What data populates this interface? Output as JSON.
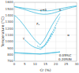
{
  "chart_data": {
    "type": "line",
    "xlabel": "Cr  (%)",
    "ylabel": "Temperature (°C)",
    "xlim": [
      0,
      30
    ],
    "ylim": [
      700,
      1600
    ],
    "xticks": [
      0,
      5,
      10,
      15,
      20,
      25,
      30
    ],
    "yticks": [
      700,
      800,
      900,
      1000,
      1100,
      1200,
      1300,
      1400,
      1500,
      1600
    ],
    "grid": true,
    "color": "#44bbdd",
    "series": [
      {
        "x": [
          0,
          2,
          4,
          6,
          8,
          10,
          12,
          14,
          16,
          18,
          20,
          22,
          24,
          26,
          28,
          30
        ],
        "values": [
          1535,
          1525,
          1515,
          1505,
          1495,
          1485,
          1475,
          1470,
          1470,
          1475,
          1488,
          1500,
          1515,
          1527,
          1538,
          1545
        ],
        "line_style": "solid"
      },
      {
        "x": [
          0,
          2,
          4,
          6,
          8,
          10,
          12,
          14,
          16,
          18,
          20,
          22,
          24,
          26,
          28,
          30
        ],
        "values": [
          1535,
          1518,
          1500,
          1480,
          1460,
          1440,
          1425,
          1418,
          1420,
          1430,
          1448,
          1468,
          1488,
          1508,
          1525,
          1540
        ],
        "line_style": "solid"
      },
      {
        "x": [
          0,
          1,
          2,
          3,
          4,
          5,
          6,
          7,
          8,
          9,
          10,
          11,
          12,
          12.5
        ],
        "values": [
          1400,
          1380,
          1350,
          1315,
          1275,
          1235,
          1190,
          1150,
          1105,
          1065,
          1025,
          995,
          965,
          950
        ],
        "line_style": "solid"
      },
      {
        "x": [
          12.5,
          13,
          14,
          15,
          16,
          17,
          18,
          19,
          20,
          21,
          22
        ],
        "values": [
          950,
          970,
          1010,
          1060,
          1120,
          1180,
          1240,
          1295,
          1345,
          1390,
          1430
        ],
        "line_style": "solid"
      },
      {
        "x": [
          0,
          1,
          2,
          3,
          4,
          5,
          6,
          7,
          8,
          9,
          10,
          11,
          12,
          12.5
        ],
        "values": [
          830,
          828,
          826,
          824,
          822,
          820,
          818,
          816,
          815,
          814,
          813,
          812,
          811,
          811
        ],
        "line_style": "solid"
      },
      {
        "x": [
          12.5,
          13,
          14,
          15,
          16,
          17,
          18,
          19,
          20,
          21,
          22
        ],
        "values": [
          811,
          812,
          814,
          817,
          820,
          823,
          827,
          830,
          834,
          838,
          842
        ],
        "line_style": "solid"
      },
      {
        "x": [
          5,
          6,
          7,
          8,
          9,
          10,
          11,
          11.8
        ],
        "values": [
          1030,
          1000,
          970,
          945,
          925,
          910,
          900,
          895
        ],
        "line_style": "solid"
      },
      {
        "x": [
          11.8,
          12.5,
          13,
          14,
          15,
          16,
          17,
          18
        ],
        "values": [
          895,
          885,
          890,
          920,
          960,
          1010,
          1065,
          1130
        ],
        "line_style": "solid"
      },
      {
        "x": [
          11,
          11.5,
          12,
          12.5,
          13,
          14,
          15,
          16,
          17,
          18,
          19,
          20
        ],
        "values": [
          935,
          925,
          918,
          912,
          910,
          920,
          945,
          985,
          1035,
          1090,
          1150,
          1215
        ],
        "line_style": "dashed"
      },
      {
        "x": [
          13,
          14,
          15,
          16,
          17,
          18,
          19,
          20,
          21,
          22
        ],
        "values": [
          910,
          930,
          960,
          1005,
          1060,
          1120,
          1185,
          1250,
          1315,
          1380
        ],
        "line_style": "dashed"
      },
      {
        "x": [
          0,
          0
        ],
        "values": [
          830,
          1400
        ],
        "line_style": "solid"
      },
      {
        "x": [
          0,
          0
        ],
        "values": [
          700,
          830
        ],
        "line_style": "solid"
      },
      {
        "x": [
          0,
          12.5
        ],
        "values": [
          830,
          811
        ],
        "line_style": "solid"
      },
      {
        "x": [
          12.5,
          22
        ],
        "values": [
          811,
          842
        ],
        "line_style": "solid"
      }
    ],
    "annotations": [
      {
        "text": "γ",
        "x": 4.5,
        "y": 1050
      },
      {
        "text": "γ+δ",
        "x": 14,
        "y": 1490
      },
      {
        "text": "δ",
        "x": 22,
        "y": 1490
      },
      {
        "text": "Fₑ",
        "x": 11.5,
        "y": 1270
      },
      {
        "text": "α",
        "x": 26,
        "y": 1100
      },
      {
        "text": "0.05%C",
        "x": 24.5,
        "y": 790
      },
      {
        "text": "0.20%Ni",
        "x": 24.5,
        "y": 770
      }
    ]
  }
}
